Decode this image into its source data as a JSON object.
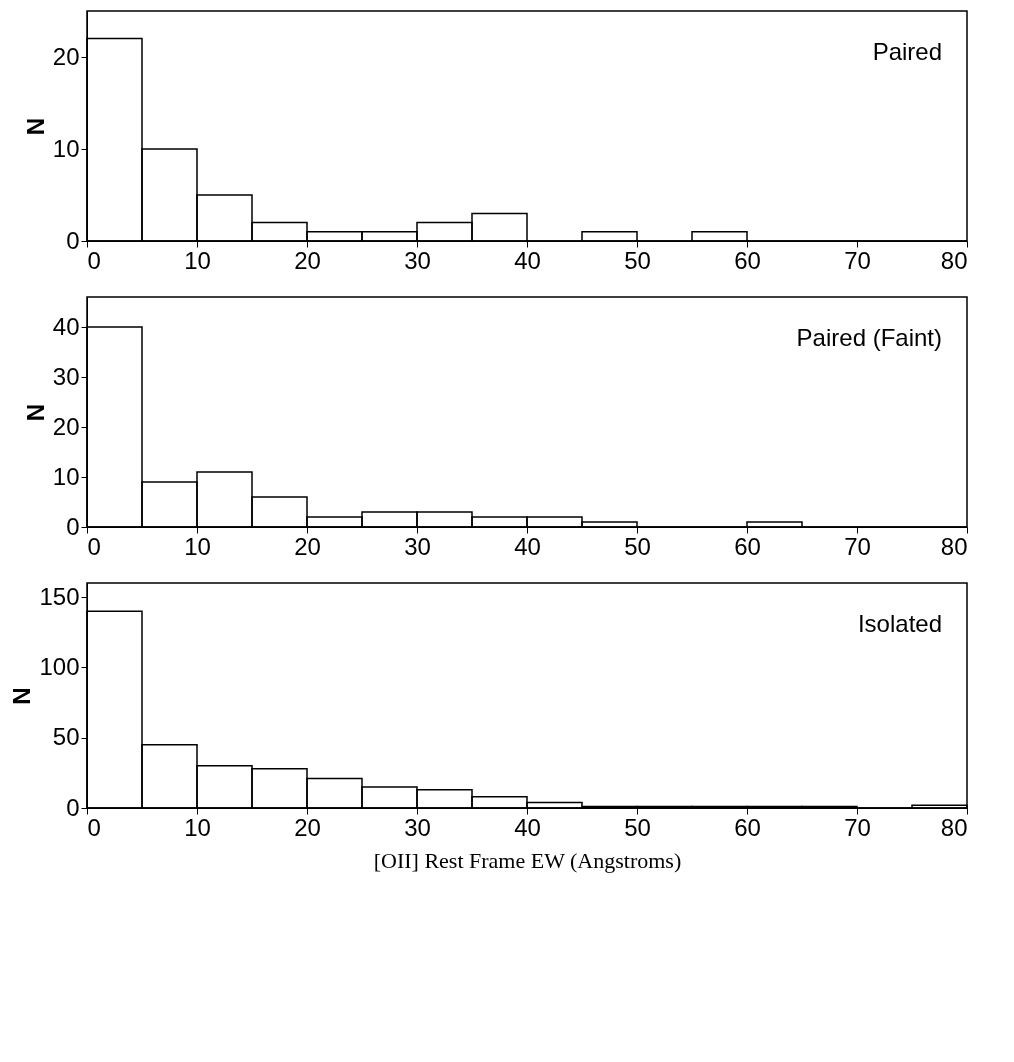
{
  "chart_data": [
    {
      "type": "histogram",
      "ylabel": "N",
      "annotations": [
        "Paired"
      ],
      "color": "#000000",
      "bins": [
        0,
        5,
        10,
        15,
        20,
        25,
        30,
        35,
        40,
        45,
        50,
        55,
        60,
        65,
        70,
        75,
        80
      ],
      "values": [
        22,
        10,
        5,
        2,
        1,
        1,
        2,
        3,
        0,
        1,
        0,
        1,
        0,
        0,
        0,
        0
      ],
      "xlim": [
        0,
        80
      ],
      "xticks": [
        0,
        10,
        20,
        30,
        40,
        50,
        60,
        70,
        80
      ],
      "ylim": [
        0,
        25
      ],
      "yticks": [
        0,
        10,
        20
      ]
    },
    {
      "type": "histogram",
      "ylabel": "N",
      "annotations": [
        "Paired (Faint)"
      ],
      "color": "#000000",
      "bins": [
        0,
        5,
        10,
        15,
        20,
        25,
        30,
        35,
        40,
        45,
        50,
        55,
        60,
        65,
        70,
        75,
        80
      ],
      "values": [
        40,
        9,
        11,
        6,
        2,
        3,
        3,
        2,
        2,
        1,
        0,
        0,
        1,
        0,
        0,
        0
      ],
      "xlim": [
        0,
        80
      ],
      "xticks": [
        0,
        10,
        20,
        30,
        40,
        50,
        60,
        70,
        80
      ],
      "ylim": [
        0,
        46
      ],
      "yticks": [
        0,
        10,
        20,
        30,
        40
      ]
    },
    {
      "type": "histogram",
      "ylabel": "N",
      "xlabel": "[OII] Rest Frame EW (Angstroms)",
      "annotations": [
        "Isolated"
      ],
      "color": "#000000",
      "bins": [
        0,
        5,
        10,
        15,
        20,
        25,
        30,
        35,
        40,
        45,
        50,
        55,
        60,
        65,
        70,
        75,
        80
      ],
      "values": [
        140,
        45,
        30,
        28,
        21,
        15,
        13,
        8,
        4,
        1,
        1,
        1,
        1,
        1,
        0,
        2
      ],
      "xlim": [
        0,
        80
      ],
      "xticks": [
        0,
        10,
        20,
        30,
        40,
        50,
        60,
        70,
        80
      ],
      "ylim": [
        0,
        160
      ],
      "yticks": [
        0,
        50,
        100,
        150
      ]
    }
  ]
}
